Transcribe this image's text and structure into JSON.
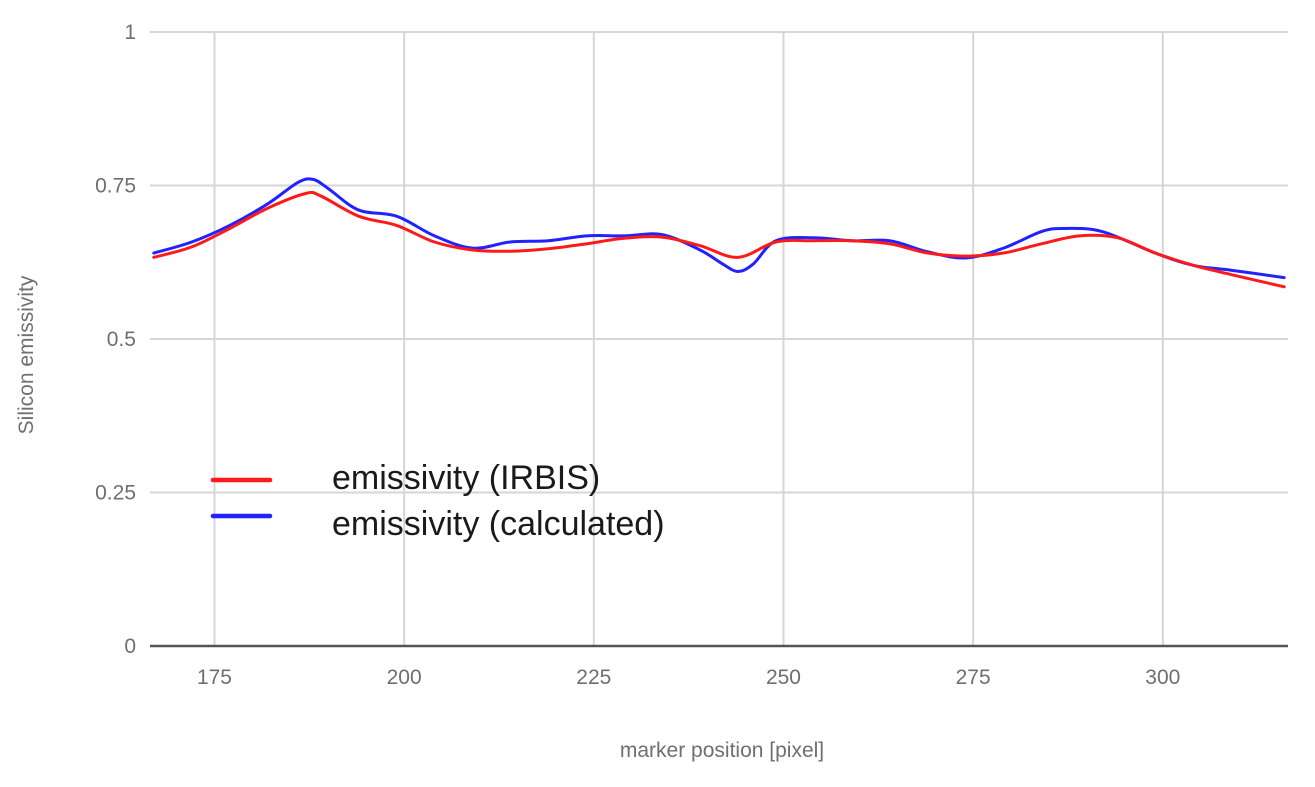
{
  "chart_data": {
    "type": "line",
    "title": "",
    "xlabel": "marker position [pixel]",
    "ylabel": "Silicon emissivity",
    "xlim": [
      166.5,
      316.5
    ],
    "ylim": [
      0,
      1
    ],
    "xticks": [
      175,
      200,
      225,
      250,
      275,
      300
    ],
    "yticks": [
      0,
      0.25,
      0.5,
      0.75,
      1
    ],
    "xtick_labels": [
      "175",
      "200",
      "225",
      "250",
      "275",
      "300"
    ],
    "ytick_labels": [
      "0",
      "0.25",
      "0.5",
      "0.75",
      "1"
    ],
    "grid": true,
    "legend_position": "lower-left",
    "series": [
      {
        "name": "emissivity (IRBIS)",
        "color": "#ff1a1a",
        "x": [
          167,
          172,
          177,
          182,
          187,
          189,
          194,
          199,
          204,
          209,
          214,
          219,
          224,
          229,
          234,
          239,
          244,
          249,
          254,
          259,
          264,
          269,
          274,
          279,
          284,
          289,
          294,
          299,
          304,
          309,
          316
        ],
        "y": [
          0.633,
          0.65,
          0.68,
          0.713,
          0.737,
          0.733,
          0.7,
          0.685,
          0.658,
          0.645,
          0.643,
          0.647,
          0.655,
          0.664,
          0.666,
          0.652,
          0.633,
          0.658,
          0.66,
          0.66,
          0.655,
          0.64,
          0.635,
          0.64,
          0.655,
          0.668,
          0.665,
          0.64,
          0.62,
          0.605,
          0.585
        ]
      },
      {
        "name": "emissivity (calculated)",
        "color": "#2222ff",
        "x": [
          167,
          172,
          177,
          182,
          186,
          188,
          190,
          194,
          199,
          204,
          209,
          214,
          219,
          224,
          229,
          234,
          239,
          242,
          244,
          246,
          249,
          254,
          259,
          264,
          269,
          274,
          279,
          284,
          287,
          292,
          299,
          304,
          309,
          316
        ],
        "y": [
          0.64,
          0.658,
          0.685,
          0.72,
          0.755,
          0.76,
          0.745,
          0.71,
          0.7,
          0.668,
          0.648,
          0.658,
          0.66,
          0.668,
          0.668,
          0.67,
          0.645,
          0.622,
          0.61,
          0.622,
          0.66,
          0.665,
          0.66,
          0.66,
          0.642,
          0.632,
          0.648,
          0.675,
          0.68,
          0.675,
          0.64,
          0.62,
          0.612,
          0.6
        ]
      }
    ]
  }
}
